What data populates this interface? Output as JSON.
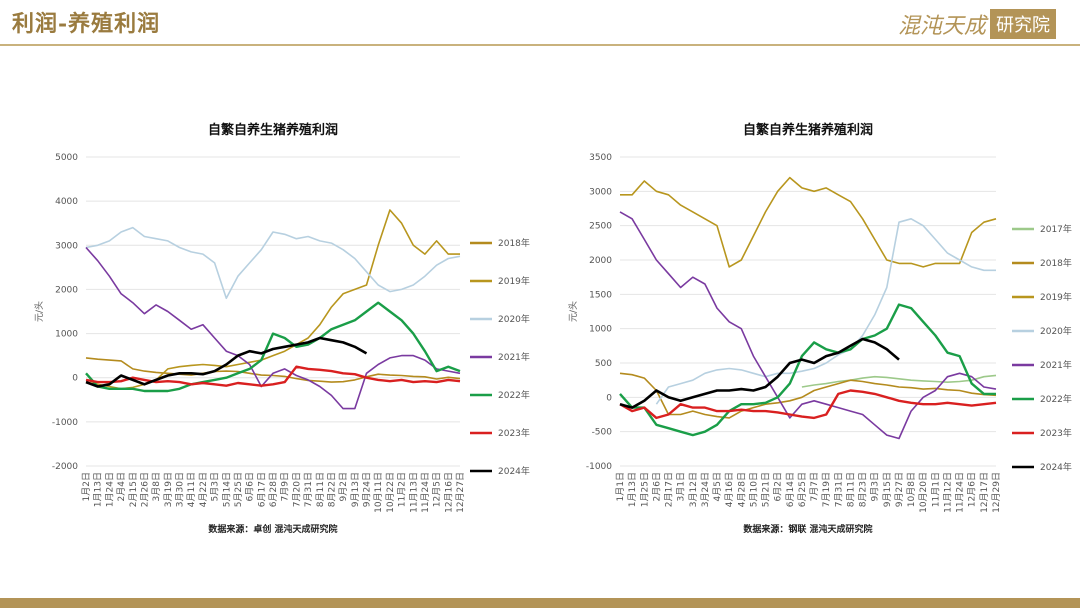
{
  "header": {
    "title": "利润-养殖利润",
    "logo_script": "混沌天成",
    "logo_box": "研究院"
  },
  "colors": {
    "accent": "#b39457",
    "2017年": "#9dc98a",
    "2018年": "#b48b1e",
    "2019年": "#b8961e",
    "2020年": "#b7d0e0",
    "2021年": "#7a3aa0",
    "2022年": "#1a9e48",
    "2023年": "#d92020",
    "2024年": "#000000"
  },
  "chart_data": [
    {
      "type": "line",
      "title": "自繁自养生猪养殖利润",
      "ylabel": "元/头",
      "xlabel": "",
      "ylim": [
        -2000,
        5000
      ],
      "yticks": [
        -2000,
        -1000,
        0,
        1000,
        2000,
        3000,
        4000,
        5000
      ],
      "x_tick_labels": [
        "1月2日",
        "1月13日",
        "1月24日",
        "2月4日",
        "2月15日",
        "2月26日",
        "3月8日",
        "3月19日",
        "3月30日",
        "4月11日",
        "4月22日",
        "5月3日",
        "5月14日",
        "5月25日",
        "6月6日",
        "6月17日",
        "6月28日",
        "7月9日",
        "7月20日",
        "7月31日",
        "8月11日",
        "8月22日",
        "9月2日",
        "9月13日",
        "9月24日",
        "10月11日",
        "10月22日",
        "11月2日",
        "11月13日",
        "11月24日",
        "12月5日",
        "12月16日",
        "12月27日"
      ],
      "source": "数据来源：卓创 混沌天成研究院",
      "series": [
        {
          "name": "2018年",
          "x": [
            0,
            1,
            2,
            3,
            4,
            5,
            6,
            7,
            8,
            9,
            10,
            11,
            12,
            13,
            14,
            15,
            16,
            17,
            18,
            19,
            20,
            21,
            22,
            23,
            24,
            25,
            26,
            27,
            28,
            29,
            30,
            31,
            32
          ],
          "values": [
            450,
            420,
            400,
            380,
            200,
            150,
            120,
            100,
            80,
            60,
            100,
            140,
            150,
            140,
            100,
            60,
            50,
            30,
            -20,
            -60,
            -80,
            -100,
            -90,
            -50,
            20,
            80,
            60,
            50,
            30,
            20,
            -30,
            10,
            -20
          ]
        },
        {
          "name": "2019年",
          "x": [
            0,
            1,
            2,
            3,
            4,
            5,
            6,
            7,
            8,
            9,
            10,
            11,
            12,
            13,
            14,
            15,
            16,
            17,
            18,
            19,
            20,
            21,
            22,
            23,
            24,
            25,
            26,
            27,
            28,
            29,
            30,
            31,
            32
          ],
          "values": [
            -100,
            -150,
            -200,
            -250,
            -220,
            -150,
            -50,
            200,
            250,
            280,
            300,
            280,
            250,
            300,
            350,
            400,
            500,
            600,
            750,
            900,
            1200,
            1600,
            1900,
            2000,
            2100,
            3000,
            3800,
            3500,
            3000,
            2800,
            3100,
            2800,
            2800
          ]
        },
        {
          "name": "2020年",
          "x": [
            0,
            1,
            2,
            3,
            4,
            5,
            6,
            7,
            8,
            9,
            10,
            11,
            12,
            13,
            14,
            15,
            16,
            17,
            18,
            19,
            20,
            21,
            22,
            23,
            24,
            25,
            26,
            27,
            28,
            29,
            30,
            31,
            32
          ],
          "values": [
            2950,
            3000,
            3100,
            3300,
            3400,
            3200,
            3150,
            3100,
            2950,
            2850,
            2800,
            2600,
            1800,
            2300,
            2600,
            2900,
            3300,
            3250,
            3150,
            3200,
            3100,
            3050,
            2900,
            2700,
            2400,
            2100,
            1950,
            2000,
            2100,
            2300,
            2550,
            2700,
            2750
          ]
        },
        {
          "name": "2021年",
          "x": [
            0,
            1,
            2,
            3,
            4,
            5,
            6,
            7,
            8,
            9,
            10,
            11,
            12,
            13,
            14,
            15,
            16,
            17,
            18,
            19,
            20,
            21,
            22,
            23,
            24,
            25,
            26,
            27,
            28,
            29,
            30,
            31,
            32
          ],
          "values": [
            2950,
            2650,
            2300,
            1900,
            1700,
            1450,
            1650,
            1500,
            1300,
            1100,
            1200,
            900,
            600,
            500,
            300,
            -200,
            100,
            200,
            50,
            -50,
            -200,
            -400,
            -700,
            -700,
            100,
            300,
            450,
            500,
            500,
            400,
            200,
            150,
            100
          ]
        },
        {
          "name": "2022年",
          "x": [
            0,
            1,
            2,
            3,
            4,
            5,
            6,
            7,
            8,
            9,
            10,
            11,
            12,
            13,
            14,
            15,
            16,
            17,
            18,
            19,
            20,
            21,
            22,
            23,
            24,
            25,
            26,
            27,
            28,
            29,
            30,
            31,
            32
          ],
          "values": [
            100,
            -200,
            -250,
            -250,
            -250,
            -300,
            -300,
            -300,
            -250,
            -150,
            -100,
            -50,
            0,
            100,
            200,
            400,
            1000,
            900,
            700,
            750,
            900,
            1100,
            1200,
            1300,
            1500,
            1700,
            1500,
            1300,
            1000,
            600,
            150,
            250,
            150
          ]
        },
        {
          "name": "2023年",
          "x": [
            0,
            1,
            2,
            3,
            4,
            5,
            6,
            7,
            8,
            9,
            10,
            11,
            12,
            13,
            14,
            15,
            16,
            17,
            18,
            19,
            20,
            21,
            22,
            23,
            24,
            25,
            26,
            27,
            28,
            29,
            30,
            31,
            32
          ],
          "values": [
            -50,
            -100,
            -100,
            -80,
            0,
            -50,
            -100,
            -80,
            -100,
            -150,
            -120,
            -150,
            -180,
            -120,
            -150,
            -180,
            -150,
            -100,
            250,
            200,
            180,
            150,
            100,
            80,
            0,
            -50,
            -80,
            -50,
            -100,
            -80,
            -100,
            -50,
            -80
          ]
        },
        {
          "name": "2024年",
          "x": [
            0,
            1,
            2,
            3,
            4,
            5,
            6,
            7,
            8,
            9,
            10,
            11,
            12,
            13,
            14,
            15,
            16,
            17,
            18,
            19,
            20,
            21,
            22,
            23,
            24
          ],
          "values": [
            -100,
            -200,
            -150,
            50,
            -50,
            -150,
            -50,
            50,
            100,
            100,
            80,
            150,
            300,
            500,
            600,
            550,
            650,
            700,
            750,
            800,
            900,
            850,
            800,
            700,
            550
          ]
        }
      ]
    },
    {
      "type": "line",
      "title": "自繁自养生猪养殖利润",
      "ylabel": "元/头",
      "xlabel": "",
      "ylim": [
        -1000,
        3500
      ],
      "yticks": [
        -1000,
        -500,
        0,
        500,
        1000,
        1500,
        2000,
        2500,
        3000,
        3500
      ],
      "x_tick_labels": [
        "1月1日",
        "1月13日",
        "1月25日",
        "2月6日",
        "2月17日",
        "3月1日",
        "3月12日",
        "3月24日",
        "4月5日",
        "4月16日",
        "4月28日",
        "5月10日",
        "5月21日",
        "6月2日",
        "6月14日",
        "6月25日",
        "7月7日",
        "7月19日",
        "7月31日",
        "8月11日",
        "8月23日",
        "9月3日",
        "9月15日",
        "9月27日",
        "10月8日",
        "10月20日",
        "11月1日",
        "11月12日",
        "11月24日",
        "12月6日",
        "12月17日",
        "12月29日"
      ],
      "source": "数据来源：钢联 混沌天成研究院",
      "series": [
        {
          "name": "2017年",
          "x": [
            15,
            16,
            17,
            18,
            19,
            20,
            21,
            22,
            23,
            24,
            25,
            26,
            27,
            28,
            29,
            30,
            31
          ],
          "values": [
            150,
            180,
            200,
            230,
            250,
            280,
            300,
            290,
            270,
            250,
            240,
            230,
            220,
            230,
            250,
            300,
            320
          ]
        },
        {
          "name": "2018年",
          "x": [
            0,
            1,
            2,
            3,
            4,
            5,
            6,
            7,
            8,
            9,
            10,
            11,
            12,
            13,
            14,
            15,
            16,
            17,
            18,
            19,
            20,
            21,
            22,
            23,
            24,
            25,
            26,
            27,
            28,
            29,
            30,
            31
          ],
          "values": [
            350,
            330,
            280,
            100,
            -250,
            -250,
            -200,
            -250,
            -280,
            -300,
            -200,
            -150,
            -100,
            -80,
            -50,
            0,
            100,
            150,
            200,
            250,
            230,
            200,
            180,
            150,
            140,
            120,
            130,
            110,
            100,
            60,
            40,
            30
          ]
        },
        {
          "name": "2019年",
          "x": [
            0,
            1,
            2,
            3,
            4,
            5,
            6,
            7,
            8,
            9,
            10,
            11,
            12,
            13,
            14,
            15,
            16,
            17,
            18,
            19,
            20,
            21,
            22,
            23,
            24,
            25,
            26,
            27,
            28,
            29,
            30,
            31
          ],
          "values": [
            2950,
            2950,
            3150,
            3000,
            2950,
            2800,
            2700,
            2600,
            2500,
            1900,
            2000,
            2350,
            2700,
            3000,
            3200,
            3050,
            3000,
            3050,
            2950,
            2850,
            2600,
            2300,
            2000,
            1950,
            1950,
            1900,
            1950,
            1950,
            1950,
            2400,
            2550,
            2600
          ]
        },
        {
          "name": "2020年",
          "x": [
            3,
            4,
            5,
            6,
            7,
            8,
            9,
            10,
            11,
            12,
            13,
            14,
            15,
            16,
            17,
            18,
            19,
            20,
            21,
            22,
            23,
            24,
            25,
            26,
            27,
            28,
            29,
            30,
            31
          ],
          "values": [
            -100,
            150,
            200,
            250,
            350,
            400,
            420,
            400,
            350,
            300,
            350,
            350,
            380,
            420,
            500,
            620,
            700,
            900,
            1200,
            1600,
            2550,
            2600,
            2500,
            2300,
            2100,
            2000,
            1900,
            1850,
            1850
          ]
        },
        {
          "name": "2021年",
          "x": [
            0,
            1,
            2,
            3,
            4,
            5,
            6,
            7,
            8,
            9,
            10,
            11,
            12,
            13,
            14,
            15,
            16,
            17,
            18,
            19,
            20,
            21,
            22,
            23,
            24,
            25,
            26,
            27,
            28,
            29,
            30,
            31
          ],
          "values": [
            2700,
            2600,
            2300,
            2000,
            1800,
            1600,
            1750,
            1650,
            1300,
            1100,
            1000,
            600,
            300,
            0,
            -300,
            -100,
            -50,
            -100,
            -150,
            -200,
            -250,
            -400,
            -550,
            -600,
            -200,
            0,
            100,
            300,
            350,
            300,
            150,
            120
          ]
        },
        {
          "name": "2022年",
          "x": [
            0,
            1,
            2,
            3,
            4,
            5,
            6,
            7,
            8,
            9,
            10,
            11,
            12,
            13,
            14,
            15,
            16,
            17,
            18,
            19,
            20,
            21,
            22,
            23,
            24,
            25,
            26,
            27,
            28,
            29,
            30,
            31
          ],
          "values": [
            50,
            -150,
            -150,
            -400,
            -450,
            -500,
            -550,
            -500,
            -400,
            -200,
            -100,
            -100,
            -80,
            0,
            200,
            600,
            800,
            700,
            650,
            700,
            850,
            900,
            1000,
            1350,
            1300,
            1100,
            900,
            650,
            600,
            200,
            50,
            50
          ]
        },
        {
          "name": "2023年",
          "x": [
            0,
            1,
            2,
            3,
            4,
            5,
            6,
            7,
            8,
            9,
            10,
            11,
            12,
            13,
            14,
            15,
            16,
            17,
            18,
            19,
            20,
            21,
            22,
            23,
            24,
            25,
            26,
            27,
            28,
            29,
            30,
            31
          ],
          "values": [
            -100,
            -200,
            -150,
            -300,
            -250,
            -100,
            -150,
            -150,
            -200,
            -200,
            -180,
            -200,
            -200,
            -220,
            -250,
            -280,
            -300,
            -250,
            50,
            100,
            80,
            50,
            0,
            -50,
            -80,
            -100,
            -100,
            -80,
            -100,
            -120,
            -100,
            -80
          ]
        },
        {
          "name": "2024年",
          "x": [
            0,
            1,
            2,
            3,
            4,
            5,
            6,
            7,
            8,
            9,
            10,
            11,
            12,
            13,
            14,
            15,
            16,
            17,
            18,
            19,
            20,
            21,
            22,
            23
          ],
          "values": [
            -100,
            -150,
            -50,
            100,
            0,
            -50,
            0,
            50,
            100,
            100,
            120,
            100,
            150,
            300,
            500,
            550,
            500,
            600,
            650,
            750,
            850,
            800,
            700,
            550
          ]
        }
      ]
    }
  ]
}
